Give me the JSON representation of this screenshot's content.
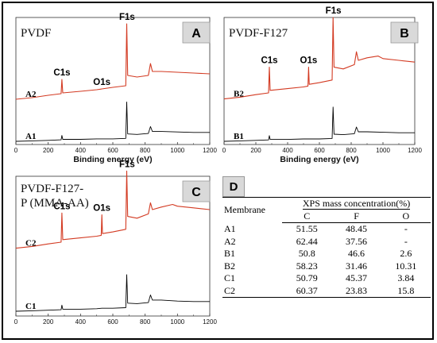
{
  "chart_data": [
    {
      "type": "line",
      "panel": "A",
      "title": "PVDF",
      "xlabel": "Binding energy (eV)",
      "xlim": [
        0,
        1200
      ],
      "xticks": [
        0,
        200,
        400,
        600,
        800,
        1000,
        1200
      ],
      "peak_labels": [
        {
          "text": "C1s",
          "x": 285
        },
        {
          "text": "O1s",
          "x": 532
        },
        {
          "text": "F1s",
          "x": 688
        }
      ],
      "series": [
        {
          "name": "A2",
          "color": "#d33a22",
          "points": [
            [
              0,
              0.05
            ],
            [
              100,
              0.07
            ],
            [
              200,
              0.1
            ],
            [
              280,
              0.12
            ],
            [
              285,
              0.3
            ],
            [
              290,
              0.13
            ],
            [
              400,
              0.15
            ],
            [
              500,
              0.17
            ],
            [
              532,
              0.18
            ],
            [
              600,
              0.2
            ],
            [
              680,
              0.22
            ],
            [
              686,
              1.0
            ],
            [
              692,
              0.35
            ],
            [
              750,
              0.33
            ],
            [
              820,
              0.35
            ],
            [
              833,
              0.5
            ],
            [
              845,
              0.4
            ],
            [
              900,
              0.4
            ],
            [
              1000,
              0.39
            ],
            [
              1100,
              0.38
            ],
            [
              1200,
              0.37
            ]
          ]
        },
        {
          "name": "A1",
          "color": "#000000",
          "points": [
            [
              0,
              0.0
            ],
            [
              100,
              0.01
            ],
            [
              200,
              0.02
            ],
            [
              280,
              0.03
            ],
            [
              285,
              0.12
            ],
            [
              290,
              0.04
            ],
            [
              400,
              0.04
            ],
            [
              500,
              0.05
            ],
            [
              600,
              0.05
            ],
            [
              680,
              0.06
            ],
            [
              686,
              0.8
            ],
            [
              692,
              0.15
            ],
            [
              750,
              0.14
            ],
            [
              820,
              0.16
            ],
            [
              833,
              0.3
            ],
            [
              845,
              0.2
            ],
            [
              900,
              0.2
            ],
            [
              1000,
              0.19
            ],
            [
              1100,
              0.18
            ],
            [
              1200,
              0.18
            ]
          ]
        }
      ]
    },
    {
      "type": "line",
      "panel": "B",
      "title": "PVDF-F127",
      "xlabel": "Binding energy (eV)",
      "xlim": [
        0,
        1200
      ],
      "xticks": [
        0,
        200,
        400,
        600,
        800,
        1000,
        1200
      ],
      "peak_labels": [
        {
          "text": "C1s",
          "x": 285
        },
        {
          "text": "O1s",
          "x": 532
        },
        {
          "text": "F1s",
          "x": 688
        }
      ],
      "series": [
        {
          "name": "B2",
          "color": "#d33a22",
          "points": [
            [
              0,
              0.05
            ],
            [
              100,
              0.07
            ],
            [
              200,
              0.1
            ],
            [
              280,
              0.12
            ],
            [
              285,
              0.42
            ],
            [
              290,
              0.15
            ],
            [
              400,
              0.17
            ],
            [
              500,
              0.19
            ],
            [
              528,
              0.2
            ],
            [
              532,
              0.42
            ],
            [
              536,
              0.22
            ],
            [
              600,
              0.24
            ],
            [
              680,
              0.27
            ],
            [
              686,
              1.0
            ],
            [
              692,
              0.42
            ],
            [
              750,
              0.4
            ],
            [
              820,
              0.45
            ],
            [
              833,
              0.6
            ],
            [
              845,
              0.5
            ],
            [
              900,
              0.53
            ],
            [
              970,
              0.55
            ],
            [
              1000,
              0.52
            ],
            [
              1100,
              0.5
            ],
            [
              1200,
              0.48
            ]
          ]
        },
        {
          "name": "B1",
          "color": "#000000",
          "points": [
            [
              0,
              0.0
            ],
            [
              100,
              0.01
            ],
            [
              200,
              0.02
            ],
            [
              280,
              0.03
            ],
            [
              285,
              0.12
            ],
            [
              290,
              0.04
            ],
            [
              400,
              0.04
            ],
            [
              500,
              0.05
            ],
            [
              600,
              0.05
            ],
            [
              680,
              0.06
            ],
            [
              686,
              0.72
            ],
            [
              692,
              0.15
            ],
            [
              750,
              0.14
            ],
            [
              820,
              0.16
            ],
            [
              833,
              0.3
            ],
            [
              845,
              0.2
            ],
            [
              900,
              0.2
            ],
            [
              1000,
              0.19
            ],
            [
              1100,
              0.18
            ],
            [
              1200,
              0.18
            ]
          ]
        }
      ]
    },
    {
      "type": "line",
      "panel": "C",
      "title": "PVDF-F127-\nP (MMA-AA)",
      "xlabel": "",
      "xlim": [
        0,
        1200
      ],
      "xticks": [
        0,
        200,
        400,
        600,
        800,
        1000,
        1200
      ],
      "peak_labels": [
        {
          "text": "C1s",
          "x": 285
        },
        {
          "text": "O1s",
          "x": 532
        },
        {
          "text": "F1s",
          "x": 688
        }
      ],
      "series": [
        {
          "name": "C2",
          "color": "#d33a22",
          "points": [
            [
              0,
              0.05
            ],
            [
              100,
              0.07
            ],
            [
              200,
              0.1
            ],
            [
              280,
              0.12
            ],
            [
              285,
              0.46
            ],
            [
              290,
              0.15
            ],
            [
              400,
              0.17
            ],
            [
              500,
              0.19
            ],
            [
              528,
              0.2
            ],
            [
              532,
              0.44
            ],
            [
              536,
              0.22
            ],
            [
              600,
              0.24
            ],
            [
              680,
              0.27
            ],
            [
              686,
              0.95
            ],
            [
              692,
              0.42
            ],
            [
              750,
              0.4
            ],
            [
              820,
              0.45
            ],
            [
              833,
              0.58
            ],
            [
              845,
              0.5
            ],
            [
              900,
              0.53
            ],
            [
              970,
              0.56
            ],
            [
              1000,
              0.54
            ],
            [
              1100,
              0.52
            ],
            [
              1200,
              0.5
            ]
          ]
        },
        {
          "name": "C1",
          "color": "#000000",
          "points": [
            [
              0,
              0.0
            ],
            [
              100,
              0.01
            ],
            [
              200,
              0.02
            ],
            [
              280,
              0.03
            ],
            [
              285,
              0.12
            ],
            [
              290,
              0.04
            ],
            [
              400,
              0.04
            ],
            [
              500,
              0.05
            ],
            [
              532,
              0.06
            ],
            [
              600,
              0.06
            ],
            [
              680,
              0.07
            ],
            [
              686,
              0.72
            ],
            [
              692,
              0.16
            ],
            [
              750,
              0.15
            ],
            [
              820,
              0.17
            ],
            [
              833,
              0.32
            ],
            [
              845,
              0.22
            ],
            [
              900,
              0.22
            ],
            [
              1000,
              0.2
            ],
            [
              1100,
              0.19
            ],
            [
              1200,
              0.19
            ]
          ]
        }
      ]
    },
    {
      "type": "table",
      "panel": "D",
      "columns": [
        "Membrane",
        "C",
        "F",
        "O"
      ],
      "group_header": "XPS mass concentration(%)",
      "rows": [
        [
          "A1",
          "51.55",
          "48.45",
          "-"
        ],
        [
          "A2",
          "62.44",
          "37.56",
          "-"
        ],
        [
          "B1",
          "50.8",
          "46.6",
          "2.6"
        ],
        [
          "B2",
          "58.23",
          "31.46",
          "10.31"
        ],
        [
          "C1",
          "50.79",
          "45.37",
          "3.84"
        ],
        [
          "C2",
          "60.37",
          "23.83",
          "15.8"
        ]
      ]
    }
  ]
}
